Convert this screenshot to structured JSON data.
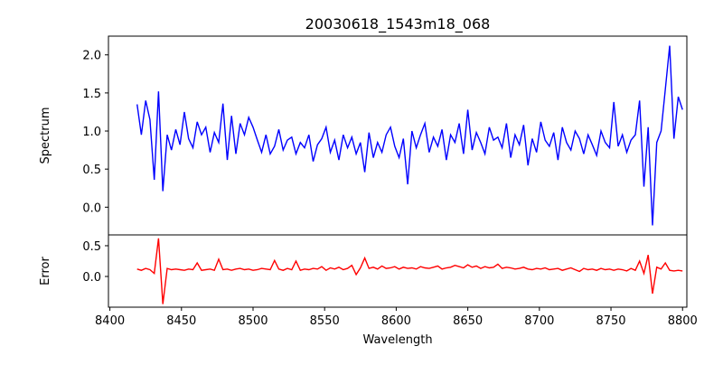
{
  "chart_data": [
    {
      "type": "line",
      "title": "20030618_1543m18_068",
      "xlabel": "",
      "ylabel": "Spectrum",
      "xlim": [
        8399,
        8803
      ],
      "ylim": [
        -0.364,
        2.246
      ],
      "yticks": [
        "0.0",
        "0.5",
        "1.0",
        "1.5",
        "2.0"
      ],
      "color": "#0000ff",
      "x_start": 8419,
      "x_step": 3,
      "values": [
        1.35,
        0.95,
        1.4,
        1.15,
        0.36,
        1.52,
        0.21,
        0.95,
        0.75,
        1.02,
        0.82,
        1.25,
        0.9,
        0.78,
        1.12,
        0.95,
        1.05,
        0.72,
        0.98,
        0.85,
        1.36,
        0.62,
        1.2,
        0.7,
        1.1,
        0.95,
        1.18,
        1.05,
        0.88,
        0.72,
        0.95,
        0.7,
        0.8,
        1.02,
        0.75,
        0.88,
        0.92,
        0.7,
        0.85,
        0.78,
        0.95,
        0.6,
        0.82,
        0.9,
        1.05,
        0.72,
        0.88,
        0.62,
        0.95,
        0.78,
        0.92,
        0.7,
        0.85,
        0.46,
        0.98,
        0.65,
        0.85,
        0.72,
        0.95,
        1.05,
        0.8,
        0.65,
        0.9,
        0.3,
        1.0,
        0.78,
        0.95,
        1.1,
        0.72,
        0.92,
        0.8,
        1.02,
        0.62,
        0.95,
        0.85,
        1.1,
        0.7,
        1.28,
        0.75,
        0.98,
        0.85,
        0.7,
        1.05,
        0.88,
        0.92,
        0.78,
        1.1,
        0.65,
        0.95,
        0.82,
        1.08,
        0.55,
        0.9,
        0.72,
        1.12,
        0.88,
        0.8,
        0.98,
        0.62,
        1.05,
        0.85,
        0.75,
        1.0,
        0.9,
        0.7,
        0.95,
        0.82,
        0.68,
        1.0,
        0.85,
        0.78,
        1.38,
        0.8,
        0.95,
        0.72,
        0.88,
        0.95,
        1.4,
        0.27,
        1.05,
        -0.24,
        0.85,
        1.0,
        1.55,
        2.12,
        0.9,
        1.45,
        1.28
      ],
      "x_end": 8787
    },
    {
      "type": "line",
      "xlabel": "Wavelength",
      "ylabel": "Error",
      "xlim": [
        8399,
        8803
      ],
      "ylim": [
        -0.5,
        0.676
      ],
      "yticks": [
        "0.0",
        "0.5"
      ],
      "xticks": [
        "8400",
        "8450",
        "8500",
        "8550",
        "8600",
        "8650",
        "8700",
        "8750",
        "8800"
      ],
      "color": "#ff0000",
      "x_start": 8419,
      "x_step": 3,
      "values": [
        0.12,
        0.1,
        0.13,
        0.11,
        0.05,
        0.62,
        -0.45,
        0.13,
        0.11,
        0.12,
        0.11,
        0.1,
        0.12,
        0.11,
        0.22,
        0.1,
        0.11,
        0.12,
        0.1,
        0.28,
        0.11,
        0.12,
        0.1,
        0.12,
        0.13,
        0.11,
        0.12,
        0.1,
        0.11,
        0.13,
        0.12,
        0.11,
        0.26,
        0.12,
        0.1,
        0.13,
        0.11,
        0.25,
        0.1,
        0.12,
        0.11,
        0.13,
        0.12,
        0.16,
        0.1,
        0.14,
        0.12,
        0.15,
        0.11,
        0.13,
        0.18,
        0.03,
        0.14,
        0.3,
        0.13,
        0.15,
        0.12,
        0.17,
        0.13,
        0.14,
        0.16,
        0.12,
        0.15,
        0.13,
        0.14,
        0.12,
        0.16,
        0.14,
        0.13,
        0.15,
        0.17,
        0.12,
        0.14,
        0.15,
        0.18,
        0.16,
        0.14,
        0.19,
        0.15,
        0.17,
        0.13,
        0.16,
        0.14,
        0.15,
        0.2,
        0.13,
        0.15,
        0.14,
        0.12,
        0.13,
        0.15,
        0.12,
        0.11,
        0.13,
        0.12,
        0.14,
        0.11,
        0.12,
        0.13,
        0.1,
        0.12,
        0.14,
        0.11,
        0.08,
        0.13,
        0.11,
        0.12,
        0.1,
        0.13,
        0.11,
        0.12,
        0.1,
        0.12,
        0.11,
        0.09,
        0.13,
        0.1,
        0.25,
        0.05,
        0.35,
        -0.28,
        0.15,
        0.12,
        0.22,
        0.1,
        0.09,
        0.1,
        0.09
      ],
      "x_end": 8787
    }
  ]
}
